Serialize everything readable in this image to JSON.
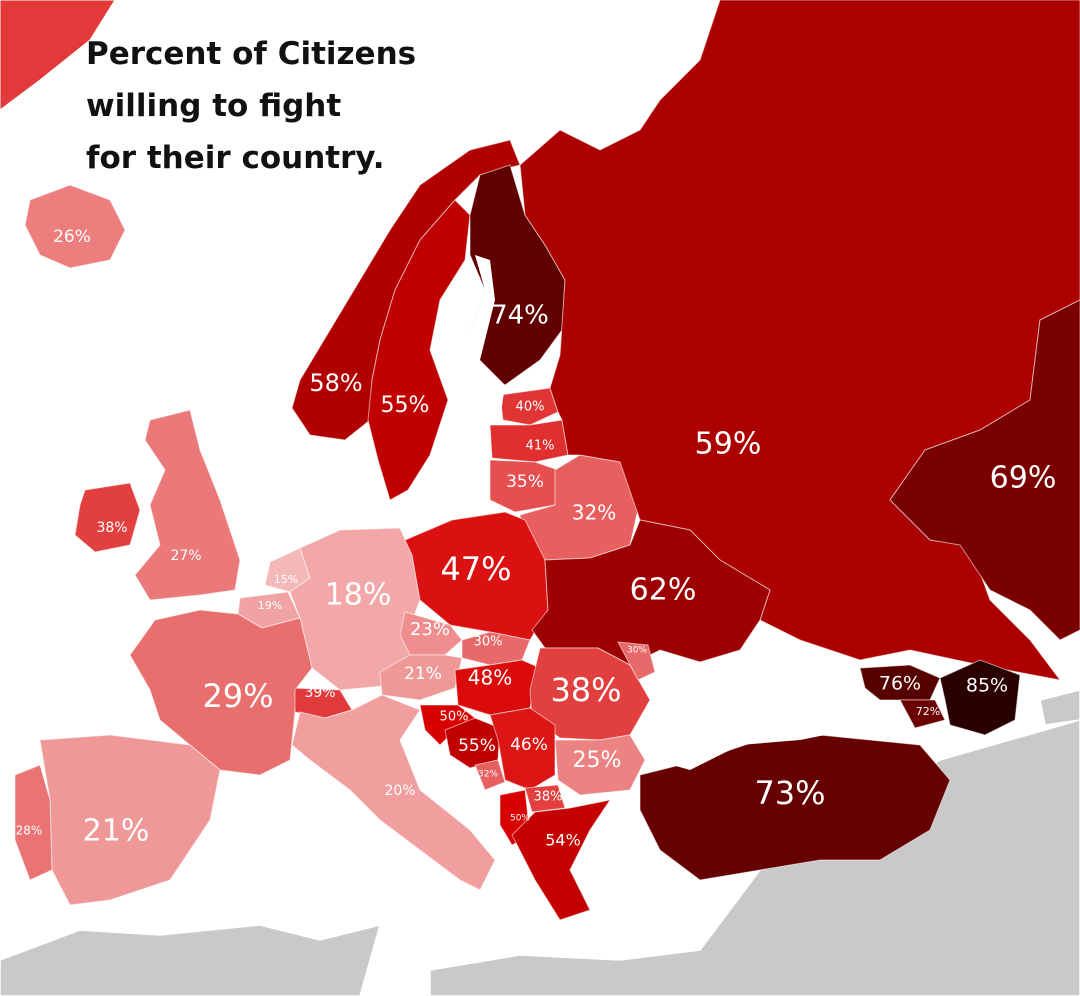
{
  "title_lines": [
    "Percent of Citizens",
    "willing to fight",
    "for their country."
  ],
  "colors": {
    "sea": "#ffffff",
    "no_data": "#c9c9c9",
    "scale_low": "#f4b8b8",
    "scale_mid": "#d90000",
    "scale_high": "#2a0000"
  },
  "regions": [
    {
      "id": "iceland",
      "label": "26%",
      "value": 26
    },
    {
      "id": "ireland",
      "label": "38%",
      "value": 38
    },
    {
      "id": "united-kingdom",
      "label": "27%",
      "value": 27
    },
    {
      "id": "norway",
      "label": "58%",
      "value": 58
    },
    {
      "id": "sweden",
      "label": "55%",
      "value": 55
    },
    {
      "id": "finland",
      "label": "74%",
      "value": 74
    },
    {
      "id": "estonia",
      "label": "40%",
      "value": 40
    },
    {
      "id": "latvia",
      "label": "41%",
      "value": 41
    },
    {
      "id": "lithuania",
      "label": "35%",
      "value": 35
    },
    {
      "id": "belarus",
      "label": "32%",
      "value": 32
    },
    {
      "id": "russia",
      "label": "59%",
      "value": 59
    },
    {
      "id": "kazakhstan",
      "label": "69%",
      "value": 69
    },
    {
      "id": "netherlands",
      "label": "15%",
      "value": 15
    },
    {
      "id": "belgium",
      "label": "19%",
      "value": 19
    },
    {
      "id": "germany",
      "label": "18%",
      "value": 18
    },
    {
      "id": "poland",
      "label": "47%",
      "value": 47
    },
    {
      "id": "ukraine",
      "label": "62%",
      "value": 62
    },
    {
      "id": "czechia",
      "label": "23%",
      "value": 23
    },
    {
      "id": "slovakia",
      "label": "30%",
      "value": 30
    },
    {
      "id": "austria",
      "label": "21%",
      "value": 21
    },
    {
      "id": "hungary",
      "label": "48%",
      "value": 48
    },
    {
      "id": "romania",
      "label": "38%",
      "value": 38
    },
    {
      "id": "moldova",
      "label": "30%",
      "value": 30
    },
    {
      "id": "switzerland",
      "label": "39%",
      "value": 39
    },
    {
      "id": "france",
      "label": "29%",
      "value": 29
    },
    {
      "id": "spain",
      "label": "21%",
      "value": 21
    },
    {
      "id": "portugal",
      "label": "28%",
      "value": 28
    },
    {
      "id": "italy",
      "label": "20%",
      "value": 20
    },
    {
      "id": "croatia",
      "label": "50%",
      "value": 50
    },
    {
      "id": "bosnia",
      "label": "55%",
      "value": 55
    },
    {
      "id": "serbia",
      "label": "46%",
      "value": 46
    },
    {
      "id": "bulgaria",
      "label": "25%",
      "value": 25
    },
    {
      "id": "montenegro",
      "label": "32%",
      "value": 32
    },
    {
      "id": "north-macedonia",
      "label": "38%",
      "value": 38
    },
    {
      "id": "albania",
      "label": "50%",
      "value": 50
    },
    {
      "id": "greece",
      "label": "54%",
      "value": 54
    },
    {
      "id": "turkey",
      "label": "73%",
      "value": 73
    },
    {
      "id": "georgia",
      "label": "76%",
      "value": 76
    },
    {
      "id": "armenia",
      "label": "72%",
      "value": 72
    },
    {
      "id": "azerbaijan",
      "label": "85%",
      "value": 85
    }
  ]
}
